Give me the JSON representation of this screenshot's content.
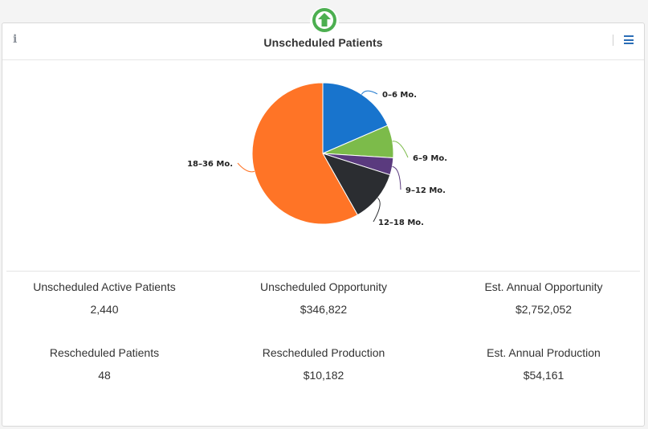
{
  "widget": {
    "title": "Unscheduled Patients",
    "info_icon": "info-icon",
    "menu_icon": "hamburger-menu-icon",
    "badge_icon": "upload-arrow-icon",
    "badge_color": "#4caf50",
    "menu_color": "#2a6db6"
  },
  "chart_data": {
    "type": "pie",
    "title": "",
    "categories": [
      "0–6 Mo.",
      "6–9 Mo.",
      "9–12 Mo.",
      "12–18 Mo.",
      "18–36 Mo."
    ],
    "values": [
      0.185,
      0.075,
      0.039,
      0.119,
      0.582
    ],
    "colors": [
      "#1874cd",
      "#7cbb4a",
      "#5a3a7e",
      "#2b2d31",
      "#ff7426"
    ]
  },
  "stats": [
    {
      "label": "Unscheduled Active Patients",
      "value": "2,440"
    },
    {
      "label": "Unscheduled Opportunity",
      "value": "$346,822"
    },
    {
      "label": "Est. Annual Opportunity",
      "value": "$2,752,052"
    },
    {
      "label": "Rescheduled Patients",
      "value": "48"
    },
    {
      "label": "Rescheduled Production",
      "value": "$10,182"
    },
    {
      "label": "Est. Annual Production",
      "value": "$54,161"
    }
  ]
}
